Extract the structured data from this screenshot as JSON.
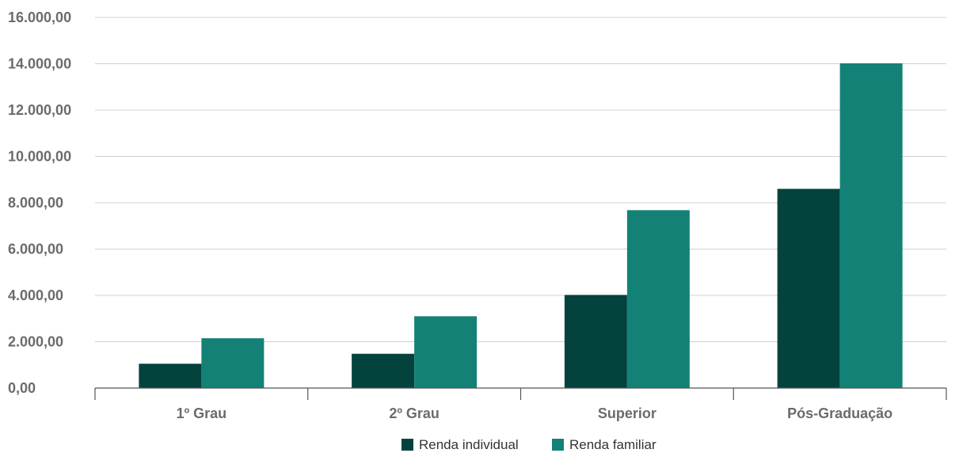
{
  "chart_data": {
    "type": "bar",
    "title": "",
    "xlabel": "",
    "ylabel": "",
    "categories": [
      "1º Grau",
      "2º Grau",
      "Superior",
      "Pós-Graduação"
    ],
    "series": [
      {
        "name": "Renda individual",
        "values": [
          1050,
          1480,
          4020,
          8600
        ],
        "color": "#04433d"
      },
      {
        "name": "Renda familiar",
        "values": [
          2150,
          3100,
          7680,
          14020
        ],
        "color": "#148177"
      }
    ],
    "ylim": [
      0,
      16000
    ],
    "yticks": [
      0,
      2000,
      4000,
      6000,
      8000,
      10000,
      12000,
      14000,
      16000
    ],
    "ytick_labels": [
      "0,00",
      "2.000,00",
      "4.000,00",
      "6.000,00",
      "8.000,00",
      "10.000,00",
      "12.000,00",
      "14.000,00",
      "16.000,00"
    ],
    "grid": true,
    "legend_position": "bottom-center",
    "colors": {
      "gridline": "#d0d0d0",
      "axis": "#555555",
      "tick_text": "#6b6b6b"
    }
  }
}
